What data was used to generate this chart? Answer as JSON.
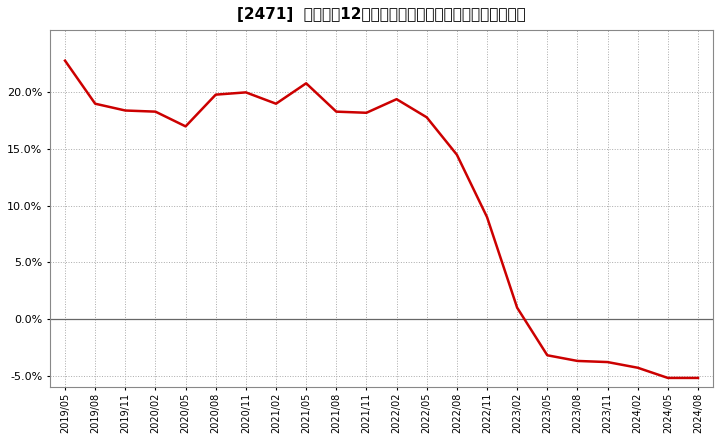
{
  "title": "[2471]  売上高の12か月移動合計の対前年同期増減率の推移",
  "line_color": "#cc0000",
  "background_color": "#ffffff",
  "plot_bg_color": "#ffffff",
  "grid_color": "#aaaaaa",
  "dates": [
    "2019/05",
    "2019/08",
    "2019/11",
    "2020/02",
    "2020/05",
    "2020/08",
    "2020/11",
    "2021/02",
    "2021/05",
    "2021/08",
    "2021/11",
    "2022/02",
    "2022/05",
    "2022/08",
    "2022/11",
    "2023/02",
    "2023/05",
    "2023/08",
    "2023/11",
    "2024/02",
    "2024/05",
    "2024/08"
  ],
  "values": [
    0.228,
    0.19,
    0.184,
    0.183,
    0.17,
    0.198,
    0.2,
    0.19,
    0.208,
    0.183,
    0.182,
    0.194,
    0.178,
    0.145,
    0.09,
    0.01,
    -0.032,
    -0.037,
    -0.038,
    -0.043,
    -0.052,
    -0.052
  ],
  "ylim": [
    -0.06,
    0.255
  ],
  "yticks": [
    -0.05,
    0.0,
    0.05,
    0.1,
    0.15,
    0.2
  ],
  "line_width": 1.8,
  "title_fontsize": 11,
  "tick_fontsize": 8,
  "xtick_fontsize": 7
}
